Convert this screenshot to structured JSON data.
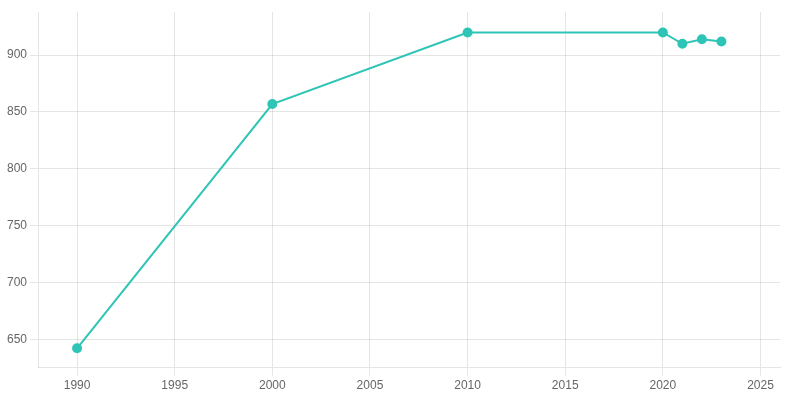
{
  "chart_data": {
    "type": "line",
    "x": [
      1990,
      2000,
      2010,
      2020,
      2021,
      2022,
      2023
    ],
    "values": [
      642,
      857,
      920,
      920,
      910,
      914,
      912
    ],
    "color": "#2ec4b6",
    "marker": "circle",
    "xlim": [
      1988,
      2026
    ],
    "ylim": [
      625,
      938
    ],
    "xticks": [
      1990,
      1995,
      2000,
      2005,
      2010,
      2015,
      2020,
      2025
    ],
    "yticks": [
      650,
      700,
      750,
      800,
      850,
      900
    ],
    "grid": true
  }
}
